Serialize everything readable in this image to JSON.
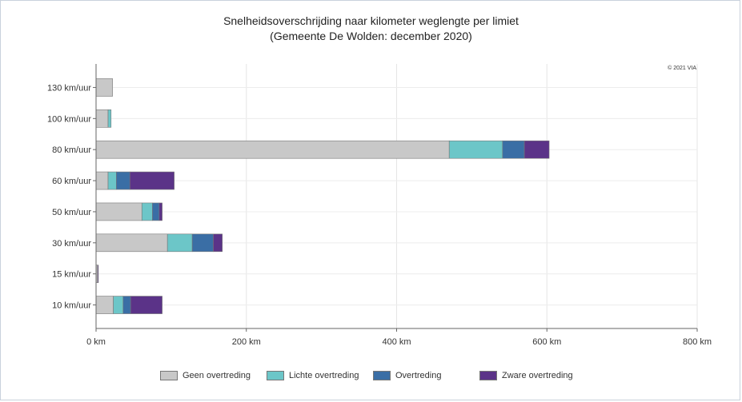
{
  "chart_data": {
    "type": "bar",
    "orientation": "horizontal",
    "stacked": true,
    "title": "Snelheidsoverschrijding naar kilometer weglengte per limiet",
    "subtitle": "(Gemeente De Wolden: december 2020)",
    "copyright": "© 2021 VIA",
    "categories": [
      "130 km/uur",
      "100 km/uur",
      "80 km/uur",
      "60 km/uur",
      "50 km/uur",
      "30 km/uur",
      "15 km/uur",
      "10 km/uur"
    ],
    "x_ticks": [
      "0 km",
      "200 km",
      "400 km",
      "600 km",
      "800 km"
    ],
    "xlim": [
      0,
      800
    ],
    "grid": true,
    "legend_position": "bottom",
    "series": [
      {
        "name": "Geen overtreding",
        "color": "#c8c8c8",
        "values": [
          22,
          16,
          470,
          16,
          61,
          95,
          2,
          23
        ]
      },
      {
        "name": "Lichte overtreding",
        "color": "#6cc6c8",
        "values": [
          0,
          4,
          71,
          11,
          14,
          33,
          0,
          13
        ]
      },
      {
        "name": "Overtreding",
        "color": "#3a6ea5",
        "values": [
          0,
          0,
          29,
          18,
          9,
          28,
          0,
          10
        ]
      },
      {
        "name": "Zware overtreding",
        "color": "#5b3388",
        "values": [
          0,
          0,
          33,
          59,
          4,
          12,
          1,
          42
        ]
      }
    ]
  }
}
